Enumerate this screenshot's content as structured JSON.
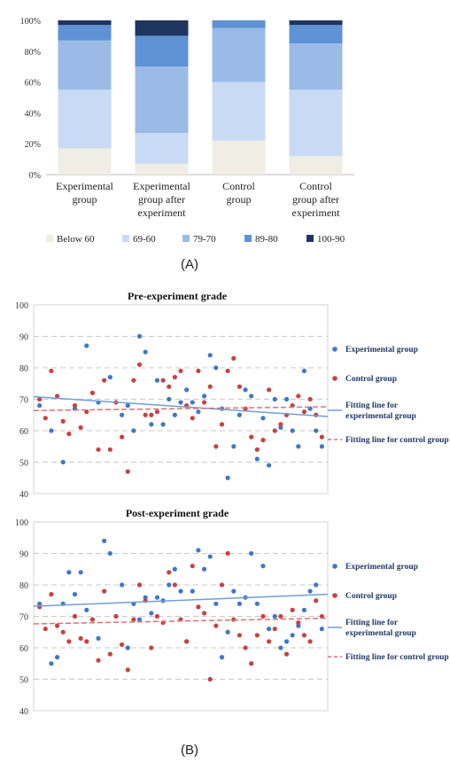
{
  "colors": {
    "below60": "#efede4",
    "r60_69": "#c9daf4",
    "r70_79": "#9bbbe7",
    "r80_89": "#5f92d4",
    "r90_100": "#1e355e",
    "exp": "#3d78c6",
    "ctl": "#c8413f",
    "expLine": "#6f9fd6",
    "ctlLine": "#e07070",
    "grid": "#c9c9c9"
  },
  "panel_labels": {
    "a": "(A)",
    "b": "(B)"
  },
  "chart_data": [
    {
      "type": "bar",
      "stacked": true,
      "categories": [
        [
          "Experimental",
          "group"
        ],
        [
          "Experimental",
          "group after",
          "experiment"
        ],
        [
          "Control",
          "group"
        ],
        [
          "Control",
          "group after",
          "experiment"
        ]
      ],
      "series": [
        {
          "name": "Below 60",
          "color_key": "below60",
          "values": [
            17,
            7,
            22,
            12
          ]
        },
        {
          "name": "69-60",
          "color_key": "r60_69",
          "values": [
            38,
            20,
            38,
            43
          ]
        },
        {
          "name": "79-70",
          "color_key": "r70_79",
          "values": [
            32,
            43,
            35,
            30
          ]
        },
        {
          "name": "89-80",
          "color_key": "r80_89",
          "values": [
            10,
            20,
            5,
            12
          ]
        },
        {
          "name": "100-90",
          "color_key": "r90_100",
          "values": [
            3,
            10,
            0,
            3
          ]
        }
      ],
      "ylim": [
        0,
        100
      ],
      "yticks": [
        "0%",
        "20%",
        "40%",
        "60%",
        "80%",
        "100%"
      ],
      "legend_position": "bottom"
    },
    {
      "type": "scatter",
      "title": "Pre-experiment grade",
      "ylim": [
        40,
        100
      ],
      "yticks": [
        40,
        50,
        60,
        70,
        80,
        90,
        100
      ],
      "xlim": [
        0,
        50
      ],
      "legend": [
        "Experimental group",
        "Control group",
        "Fitting line for experimental group",
        "Fitting line for control group"
      ],
      "legend_position": "right",
      "series": [
        {
          "name": "Experimental group",
          "color_key": "exp",
          "x": [
            1,
            3,
            5,
            7,
            9,
            11,
            13,
            15,
            16,
            17,
            18,
            19,
            20,
            21,
            22,
            23,
            24,
            25,
            26,
            27,
            28,
            29,
            30,
            31,
            32,
            33,
            34,
            35,
            36,
            37,
            38,
            39,
            40,
            41,
            42,
            43,
            44,
            45,
            46,
            47,
            48,
            49
          ],
          "y": [
            68,
            60,
            50,
            67,
            87,
            69,
            77,
            65,
            68,
            60,
            90,
            85,
            62,
            76,
            62,
            70,
            65,
            69,
            73,
            69,
            66,
            71,
            84,
            80,
            67,
            45,
            55,
            65,
            73,
            71,
            51,
            64,
            49,
            70,
            61,
            70,
            60,
            55,
            79,
            67,
            60,
            55
          ]
        },
        {
          "name": "Control group",
          "color_key": "ctl",
          "x": [
            1,
            2,
            3,
            4,
            5,
            6,
            7,
            8,
            9,
            10,
            11,
            12,
            13,
            14,
            15,
            16,
            17,
            18,
            19,
            20,
            21,
            22,
            23,
            24,
            25,
            26,
            27,
            28,
            29,
            30,
            31,
            32,
            33,
            34,
            35,
            36,
            37,
            38,
            39,
            40,
            41,
            42,
            43,
            44,
            45,
            46,
            47,
            48,
            49
          ],
          "y": [
            70,
            64,
            79,
            71,
            63,
            59,
            68,
            61,
            66,
            72,
            54,
            76,
            54,
            69,
            58,
            47,
            76,
            81,
            65,
            65,
            66,
            76,
            74,
            77,
            79,
            68,
            64,
            79,
            69,
            74,
            55,
            62,
            79,
            83,
            74,
            67,
            58,
            54,
            57,
            73,
            60,
            62,
            65,
            68,
            71,
            66,
            70,
            65,
            58
          ]
        },
        {
          "name": "Fitting line for experimental group",
          "color_key": "expLine",
          "line": [
            [
              0,
              70.8
            ],
            [
              50,
              64.5
            ]
          ]
        },
        {
          "name": "Fitting line for control group",
          "color_key": "ctlLine",
          "dashed": true,
          "line": [
            [
              0,
              66.4
            ],
            [
              50,
              67.6
            ]
          ]
        }
      ]
    },
    {
      "type": "scatter",
      "title": "Post-experiment grade",
      "ylim": [
        40,
        100
      ],
      "yticks": [
        40,
        50,
        60,
        70,
        80,
        90,
        100
      ],
      "xlim": [
        0,
        50
      ],
      "legend": [
        "Experimental group",
        "Control group",
        "Fitting line for experimental group",
        "Fitting line for control group"
      ],
      "legend_position": "right",
      "series": [
        {
          "name": "Experimental group",
          "color_key": "exp",
          "x": [
            1,
            3,
            4,
            5,
            6,
            7,
            8,
            9,
            10,
            11,
            12,
            13,
            14,
            15,
            16,
            17,
            18,
            19,
            20,
            21,
            22,
            23,
            24,
            25,
            26,
            27,
            28,
            29,
            30,
            31,
            32,
            33,
            34,
            35,
            36,
            37,
            38,
            39,
            40,
            41,
            42,
            43,
            44,
            45,
            46,
            47,
            48,
            49
          ],
          "y": [
            74,
            55,
            57,
            74,
            84,
            77,
            84,
            72,
            69,
            63,
            94,
            90,
            70,
            80,
            60,
            74,
            69,
            76,
            71,
            76,
            75,
            80,
            85,
            78,
            62,
            78,
            91,
            85,
            89,
            74,
            57,
            65,
            78,
            74,
            76,
            90,
            74,
            86,
            66,
            70,
            60,
            62,
            64,
            67,
            72,
            78,
            80,
            66
          ]
        },
        {
          "name": "Control group",
          "color_key": "ctl",
          "x": [
            1,
            2,
            3,
            4,
            5,
            6,
            7,
            8,
            9,
            10,
            11,
            12,
            13,
            14,
            15,
            16,
            17,
            18,
            19,
            20,
            21,
            22,
            23,
            24,
            25,
            26,
            27,
            28,
            29,
            30,
            31,
            32,
            33,
            34,
            35,
            36,
            37,
            38,
            39,
            40,
            41,
            42,
            43,
            44,
            45,
            46,
            47,
            48,
            49
          ],
          "y": [
            73,
            66,
            77,
            67,
            65,
            62,
            70,
            63,
            62,
            69,
            56,
            78,
            58,
            70,
            61,
            53,
            69,
            80,
            75,
            60,
            70,
            68,
            84,
            80,
            69,
            62,
            86,
            73,
            71,
            50,
            67,
            80,
            90,
            69,
            64,
            60,
            55,
            64,
            70,
            62,
            66,
            70,
            58,
            72,
            68,
            64,
            62,
            75,
            70
          ]
        },
        {
          "name": "Fitting line for experimental group",
          "color_key": "expLine",
          "line": [
            [
              0,
              73.2
            ],
            [
              50,
              77
            ]
          ]
        },
        {
          "name": "Fitting line for control group",
          "color_key": "ctlLine",
          "dashed": true,
          "line": [
            [
              0,
              67.6
            ],
            [
              50,
              69.4
            ]
          ]
        }
      ]
    }
  ]
}
